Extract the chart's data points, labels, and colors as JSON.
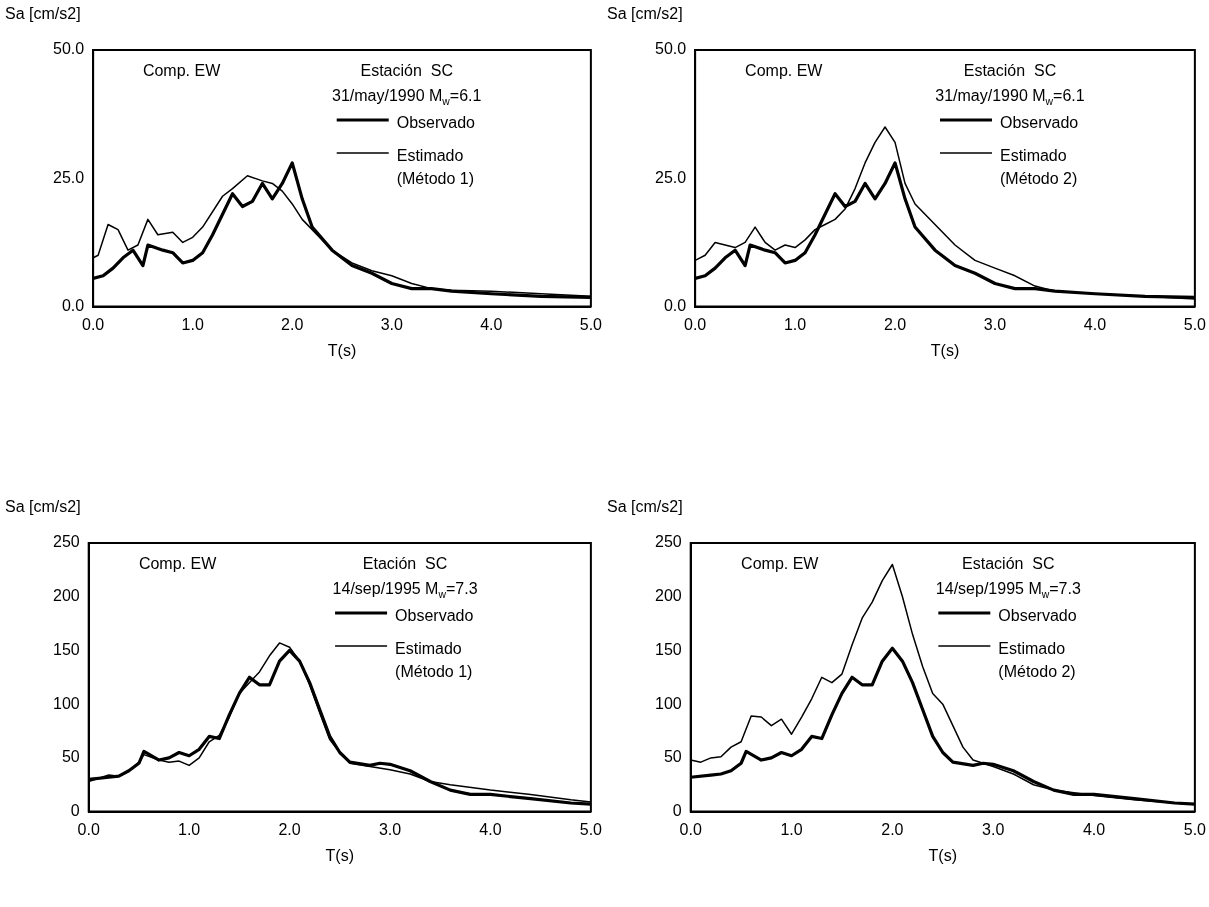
{
  "chart_data": [
    {
      "type": "line",
      "xlabel": "T(s)",
      "ylabel": "Sa [cm/s2]",
      "annotations": [
        "Comp. EW",
        "Estación  SC",
        "31/may/1990 M$_{w}$=6.1"
      ],
      "legend": "top right",
      "grid": false,
      "marker": "none",
      "xlim": [
        0,
        5
      ],
      "xticks": [
        {
          "value": 0,
          "label": "0.0"
        },
        {
          "value": 1,
          "label": "1.0"
        },
        {
          "value": 2,
          "label": "2.0"
        },
        {
          "value": 3,
          "label": "3.0"
        },
        {
          "value": 4,
          "label": "4.0"
        },
        {
          "value": 5,
          "label": "5.0"
        }
      ],
      "ylim": [
        0,
        50
      ],
      "yticks": [
        {
          "value": 0,
          "label": "0.0"
        },
        {
          "value": 25,
          "label": "25.0"
        },
        {
          "value": 50,
          "label": "50.0"
        }
      ],
      "series": [
        {
          "name": "Observado",
          "color": "#000000",
          "x": [
            0,
            0.1,
            0.2,
            0.3,
            0.4,
            0.5,
            0.55,
            0.7,
            0.8,
            0.9,
            1.0,
            1.1,
            1.2,
            1.3,
            1.4,
            1.5,
            1.6,
            1.7,
            1.8,
            1.9,
            2.0,
            2.1,
            2.2,
            2.4,
            2.6,
            2.8,
            3.0,
            3.2,
            3.4,
            3.6,
            4.0,
            4.5,
            5.0
          ],
          "values": [
            5.5,
            6,
            7.5,
            9.5,
            11,
            8,
            12,
            11,
            10.5,
            8.5,
            9,
            10.5,
            14,
            18,
            22,
            19.5,
            20.5,
            24,
            21,
            24,
            28,
            21,
            15.5,
            11,
            8,
            6.5,
            4.5,
            3.5,
            3.5,
            3,
            2.5,
            2,
            1.8
          ]
        },
        {
          "name": "Estimado\n(Método 1)",
          "color": "#000000",
          "x": [
            0,
            0.05,
            0.15,
            0.25,
            0.35,
            0.45,
            0.55,
            0.65,
            0.8,
            0.9,
            1.0,
            1.1,
            1.3,
            1.4,
            1.55,
            1.7,
            1.8,
            1.9,
            2.0,
            2.1,
            2.2,
            2.4,
            2.6,
            2.8,
            3.0,
            3.2,
            3.4,
            3.6,
            4.0,
            4.5,
            5.0
          ],
          "values": [
            9.5,
            10,
            16,
            15,
            11,
            12,
            17,
            14,
            14.5,
            12.5,
            13.5,
            15.5,
            21.5,
            23,
            25.5,
            24.5,
            24,
            22.5,
            20,
            17,
            15,
            11,
            8.5,
            7,
            6,
            4.5,
            3.5,
            3.2,
            3,
            2.5,
            2
          ]
        }
      ]
    },
    {
      "type": "line",
      "xlabel": "T(s)",
      "ylabel": "Sa [cm/s2]",
      "annotations": [
        "Comp. EW",
        "Estación  SC",
        "31/may/1990 M$_{w}$=6.1"
      ],
      "legend": "top right",
      "grid": false,
      "marker": "none",
      "xlim": [
        0,
        5
      ],
      "xticks": [
        {
          "value": 0,
          "label": "0.0"
        },
        {
          "value": 1,
          "label": "1.0"
        },
        {
          "value": 2,
          "label": "2.0"
        },
        {
          "value": 3,
          "label": "3.0"
        },
        {
          "value": 4,
          "label": "4.0"
        },
        {
          "value": 5,
          "label": "5.0"
        }
      ],
      "ylim": [
        0,
        50
      ],
      "yticks": [
        {
          "value": 0,
          "label": "0.0"
        },
        {
          "value": 25,
          "label": "25.0"
        },
        {
          "value": 50,
          "label": "50.0"
        }
      ],
      "series": [
        {
          "name": "Observado",
          "color": "#000000",
          "x": [
            0,
            0.1,
            0.2,
            0.3,
            0.4,
            0.5,
            0.55,
            0.7,
            0.8,
            0.9,
            1.0,
            1.1,
            1.2,
            1.3,
            1.4,
            1.5,
            1.6,
            1.7,
            1.8,
            1.9,
            2.0,
            2.1,
            2.2,
            2.4,
            2.6,
            2.8,
            3.0,
            3.2,
            3.4,
            3.6,
            4.0,
            4.5,
            5.0
          ],
          "values": [
            5.5,
            6,
            7.5,
            9.5,
            11,
            8,
            12,
            11,
            10.5,
            8.5,
            9,
            10.5,
            14,
            18,
            22,
            19.5,
            20.5,
            24,
            21,
            24,
            28,
            21,
            15.5,
            11,
            8,
            6.5,
            4.5,
            3.5,
            3.5,
            3,
            2.5,
            2,
            1.8
          ]
        },
        {
          "name": "Estimado\n(Método 2)",
          "color": "#000000",
          "x": [
            0,
            0.1,
            0.2,
            0.3,
            0.4,
            0.5,
            0.6,
            0.7,
            0.8,
            0.9,
            1.0,
            1.1,
            1.2,
            1.3,
            1.4,
            1.5,
            1.6,
            1.7,
            1.8,
            1.9,
            2.0,
            2.1,
            2.2,
            2.4,
            2.6,
            2.8,
            3.0,
            3.2,
            3.4,
            3.6,
            4.0,
            4.5,
            5.0
          ],
          "values": [
            9,
            10,
            12.5,
            12,
            11.5,
            12.5,
            15.5,
            12.5,
            11,
            12,
            11.5,
            13,
            15,
            16,
            17,
            19,
            23,
            28,
            32,
            35,
            32,
            24,
            20,
            16,
            12,
            9,
            7.5,
            6,
            4,
            3,
            2.5,
            2,
            1.5
          ]
        }
      ]
    },
    {
      "type": "line",
      "xlabel": "T(s)",
      "ylabel": "Sa [cm/s2]",
      "annotations": [
        "Comp. EW",
        "Etación  SC",
        "14/sep/1995 M$_{w}$=7.3"
      ],
      "legend": "top right",
      "grid": false,
      "marker": "none",
      "xlim": [
        0,
        5
      ],
      "xticks": [
        {
          "value": 0,
          "label": "0.0"
        },
        {
          "value": 1,
          "label": "1.0"
        },
        {
          "value": 2,
          "label": "2.0"
        },
        {
          "value": 3,
          "label": "3.0"
        },
        {
          "value": 4,
          "label": "4.0"
        },
        {
          "value": 5,
          "label": "5.0"
        }
      ],
      "ylim": [
        0,
        250
      ],
      "yticks": [
        0,
        50,
        100,
        150,
        200,
        250
      ],
      "series": [
        {
          "name": "Observado",
          "color": "#000000",
          "x": [
            0,
            0.2,
            0.3,
            0.4,
            0.5,
            0.55,
            0.7,
            0.8,
            0.9,
            1.0,
            1.1,
            1.2,
            1.3,
            1.4,
            1.5,
            1.6,
            1.7,
            1.8,
            1.9,
            2.0,
            2.1,
            2.2,
            2.3,
            2.4,
            2.5,
            2.6,
            2.8,
            2.9,
            3.0,
            3.2,
            3.4,
            3.6,
            3.8,
            4.0,
            4.4,
            4.8,
            5.0
          ],
          "values": [
            30,
            32,
            33,
            38,
            45,
            56,
            48,
            50,
            55,
            52,
            58,
            70,
            68,
            90,
            110,
            125,
            118,
            118,
            140,
            150,
            140,
            120,
            95,
            70,
            55,
            46,
            43,
            45,
            44,
            38,
            28,
            20,
            16,
            16,
            12,
            8,
            7
          ]
        },
        {
          "name": "Estimado\n(Método 1)",
          "color": "#000000",
          "x": [
            0,
            0.2,
            0.3,
            0.4,
            0.5,
            0.55,
            0.7,
            0.8,
            0.9,
            1.0,
            1.1,
            1.2,
            1.3,
            1.4,
            1.5,
            1.6,
            1.7,
            1.8,
            1.9,
            2.0,
            2.1,
            2.2,
            2.3,
            2.4,
            2.5,
            2.6,
            2.8,
            3.0,
            3.2,
            3.4,
            3.6,
            4.0,
            4.4,
            4.8,
            5.0
          ],
          "values": [
            28,
            34,
            33,
            38,
            46,
            53,
            48,
            46,
            47,
            43,
            50,
            65,
            71,
            88,
            110,
            120,
            130,
            145,
            157,
            153,
            140,
            118,
            92,
            67,
            55,
            45,
            42,
            39,
            35,
            28,
            25,
            20,
            16,
            11,
            9
          ]
        }
      ]
    },
    {
      "type": "line",
      "xlabel": "T(s)",
      "ylabel": "Sa [cm/s2]",
      "annotations": [
        "Comp. EW",
        "Estación  SC",
        "14/sep/1995 M$_{w}$=7.3"
      ],
      "legend": "top right",
      "grid": false,
      "marker": "none",
      "xlim": [
        0,
        5
      ],
      "xticks": [
        {
          "value": 0,
          "label": "0.0"
        },
        {
          "value": 1,
          "label": "1.0"
        },
        {
          "value": 2,
          "label": "2.0"
        },
        {
          "value": 3,
          "label": "3.0"
        },
        {
          "value": 4,
          "label": "4.0"
        },
        {
          "value": 5,
          "label": "5.0"
        }
      ],
      "ylim": [
        0,
        250
      ],
      "yticks": [
        0,
        50,
        100,
        150,
        200,
        250
      ],
      "series": [
        {
          "name": "Observado",
          "color": "#000000",
          "x": [
            0,
            0.2,
            0.3,
            0.4,
            0.5,
            0.55,
            0.7,
            0.8,
            0.9,
            1.0,
            1.1,
            1.2,
            1.3,
            1.4,
            1.5,
            1.6,
            1.7,
            1.8,
            1.9,
            2.0,
            2.1,
            2.2,
            2.3,
            2.4,
            2.5,
            2.6,
            2.8,
            2.9,
            3.0,
            3.2,
            3.4,
            3.6,
            3.8,
            4.0,
            4.4,
            4.8,
            5.0
          ],
          "values": [
            32,
            34,
            35,
            38,
            45,
            56,
            48,
            50,
            55,
            52,
            58,
            70,
            68,
            90,
            110,
            125,
            118,
            118,
            140,
            152,
            140,
            120,
            95,
            70,
            55,
            46,
            43,
            45,
            44,
            38,
            28,
            20,
            16,
            16,
            12,
            8,
            7
          ]
        },
        {
          "name": "Estimado\n(Método 2)",
          "color": "#000000",
          "x": [
            0,
            0.1,
            0.2,
            0.3,
            0.4,
            0.5,
            0.6,
            0.7,
            0.8,
            0.9,
            1.0,
            1.1,
            1.2,
            1.3,
            1.4,
            1.5,
            1.6,
            1.7,
            1.8,
            1.9,
            2.0,
            2.1,
            2.2,
            2.3,
            2.4,
            2.5,
            2.6,
            2.7,
            2.8,
            2.9,
            3.0,
            3.2,
            3.4,
            3.6,
            4.0,
            4.4,
            4.8,
            5.0
          ],
          "values": [
            48,
            46,
            50,
            51,
            60,
            65,
            89,
            88,
            80,
            86,
            72,
            88,
            105,
            125,
            120,
            128,
            155,
            180,
            195,
            215,
            230,
            200,
            165,
            135,
            110,
            100,
            80,
            60,
            48,
            45,
            42,
            35,
            25,
            20,
            15,
            11,
            8,
            7
          ]
        }
      ]
    }
  ]
}
